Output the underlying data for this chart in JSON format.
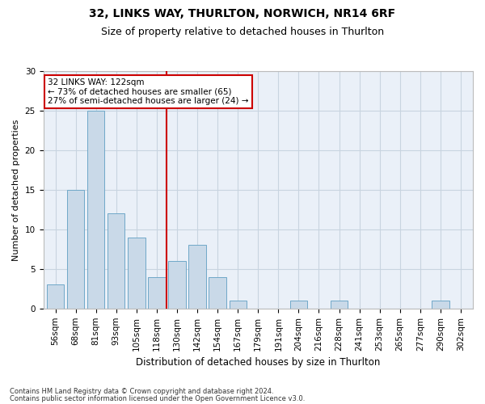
{
  "title1": "32, LINKS WAY, THURLTON, NORWICH, NR14 6RF",
  "title2": "Size of property relative to detached houses in Thurlton",
  "xlabel": "Distribution of detached houses by size in Thurlton",
  "ylabel": "Number of detached properties",
  "bin_labels": [
    "56sqm",
    "68sqm",
    "81sqm",
    "93sqm",
    "105sqm",
    "118sqm",
    "130sqm",
    "142sqm",
    "154sqm",
    "167sqm",
    "179sqm",
    "191sqm",
    "204sqm",
    "216sqm",
    "228sqm",
    "241sqm",
    "253sqm",
    "265sqm",
    "277sqm",
    "290sqm",
    "302sqm"
  ],
  "values": [
    3,
    15,
    25,
    12,
    9,
    4,
    6,
    8,
    4,
    1,
    0,
    0,
    1,
    0,
    1,
    0,
    0,
    0,
    0,
    1,
    0
  ],
  "bar_color": "#c9d9e8",
  "bar_edge_color": "#6fa8c8",
  "vline_x": 5.5,
  "vline_color": "#cc0000",
  "annotation_line1": "32 LINKS WAY: 122sqm",
  "annotation_line2": "← 73% of detached houses are smaller (65)",
  "annotation_line3": "27% of semi-detached houses are larger (24) →",
  "annotation_box_color": "#ffffff",
  "annotation_box_edge": "#cc0000",
  "ylim": [
    0,
    30
  ],
  "yticks": [
    0,
    5,
    10,
    15,
    20,
    25,
    30
  ],
  "footnote1": "Contains HM Land Registry data © Crown copyright and database right 2024.",
  "footnote2": "Contains public sector information licensed under the Open Government Licence v3.0.",
  "bg_color": "#ffffff",
  "plot_bg_color": "#eaf0f8",
  "grid_color": "#c8d4e0",
  "title1_fontsize": 10,
  "title2_fontsize": 9,
  "xlabel_fontsize": 8.5,
  "ylabel_fontsize": 8,
  "tick_fontsize": 7.5,
  "annot_fontsize": 7.5,
  "footnote_fontsize": 6
}
